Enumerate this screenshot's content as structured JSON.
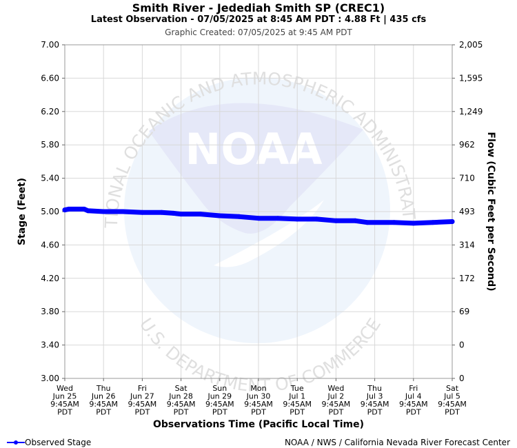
{
  "header": {
    "title": "Smith River - Jedediah Smith SP (CREC1)",
    "subtitle": "Latest Observation - 07/05/2025 at 8:45 AM PDT : 4.88 Ft | 435 cfs",
    "created": "Graphic Created: 07/05/2025 at 9:45 AM PDT"
  },
  "footer": {
    "legend_label": "Observed Stage",
    "credit": "NOAA / NWS / California Nevada River Forecast Center"
  },
  "watermark": {
    "logo_text": "NOAA",
    "ring_top": "NATIONAL OCEANIC AND ATMOSPHERIC ADMINISTRATION",
    "ring_bottom": "U.S. DEPARTMENT OF COMMERCE"
  },
  "chart_data": {
    "type": "line",
    "xlabel": "Observations Time (Pacific Local Time)",
    "ylabel": "Stage (Feet)",
    "y2label": "Flow (Cubic Feet per Second)",
    "ylim": [
      3.0,
      7.0
    ],
    "xlim": [
      0,
      10
    ],
    "x_ticks": [
      [
        "Wed",
        "Jun 25",
        "9:45AM",
        "PDT"
      ],
      [
        "Thu",
        "Jun 26",
        "9:45AM",
        "PDT"
      ],
      [
        "Fri",
        "Jun 27",
        "9:45AM",
        "PDT"
      ],
      [
        "Sat",
        "Jun 28",
        "9:45AM",
        "PDT"
      ],
      [
        "Sun",
        "Jun 29",
        "9:45AM",
        "PDT"
      ],
      [
        "Mon",
        "Jun 30",
        "9:45AM",
        "PDT"
      ],
      [
        "Tue",
        "Jul 1",
        "9:45AM",
        "PDT"
      ],
      [
        "Wed",
        "Jul 2",
        "9:45AM",
        "PDT"
      ],
      [
        "Thu",
        "Jul 3",
        "9:45AM",
        "PDT"
      ],
      [
        "Fri",
        "Jul 4",
        "9:45AM",
        "PDT"
      ],
      [
        "Sat",
        "Jul 5",
        "9:45AM",
        "PDT"
      ]
    ],
    "y_ticks": [
      "7.00",
      "6.60",
      "6.20",
      "5.80",
      "5.40",
      "5.00",
      "4.60",
      "4.20",
      "3.80",
      "3.40",
      "3.00"
    ],
    "y2_ticks": [
      "2,005",
      "1,595",
      "1,249",
      "962",
      "710",
      "493",
      "314",
      "172",
      "69",
      "0",
      "0"
    ],
    "grid": true,
    "series": [
      {
        "name": "Observed Stage",
        "color": "#0000ff",
        "points": [
          [
            0.0,
            5.02
          ],
          [
            0.1,
            5.03
          ],
          [
            0.5,
            5.03
          ],
          [
            0.6,
            5.01
          ],
          [
            1.0,
            5.0
          ],
          [
            1.5,
            5.0
          ],
          [
            2.0,
            4.99
          ],
          [
            2.5,
            4.99
          ],
          [
            2.8,
            4.98
          ],
          [
            3.0,
            4.97
          ],
          [
            3.5,
            4.97
          ],
          [
            4.0,
            4.95
          ],
          [
            4.5,
            4.94
          ],
          [
            5.0,
            4.92
          ],
          [
            5.5,
            4.92
          ],
          [
            6.0,
            4.91
          ],
          [
            6.5,
            4.91
          ],
          [
            7.0,
            4.89
          ],
          [
            7.5,
            4.89
          ],
          [
            7.8,
            4.87
          ],
          [
            8.5,
            4.87
          ],
          [
            9.0,
            4.86
          ],
          [
            9.5,
            4.87
          ],
          [
            10.0,
            4.88
          ]
        ]
      }
    ]
  }
}
